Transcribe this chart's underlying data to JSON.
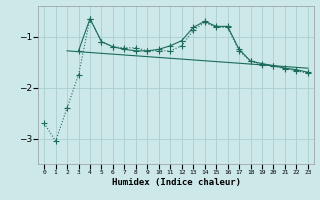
{
  "background_color": "#cce8e8",
  "grid_color": "#aacfcf",
  "line_color": "#1a6b5a",
  "xlabel": "Humidex (Indice chaleur)",
  "xlim": [
    -0.5,
    23.5
  ],
  "ylim": [
    -3.5,
    -0.4
  ],
  "yticks": [
    -3,
    -2,
    -1
  ],
  "xticks": [
    0,
    1,
    2,
    3,
    4,
    5,
    6,
    7,
    8,
    9,
    10,
    11,
    12,
    13,
    14,
    15,
    16,
    17,
    18,
    19,
    20,
    21,
    22,
    23
  ],
  "line1_x": [
    0,
    1,
    2,
    3,
    4,
    5,
    6,
    7,
    8,
    9,
    10,
    11,
    12,
    13,
    14,
    15,
    16,
    17,
    18,
    19,
    20,
    21,
    22,
    23
  ],
  "line1_y": [
    -2.7,
    -3.05,
    -2.4,
    -1.75,
    -0.65,
    -1.1,
    -1.2,
    -1.22,
    -1.22,
    -1.28,
    -1.28,
    -1.28,
    -1.18,
    -0.88,
    -0.72,
    -0.82,
    -0.82,
    -1.28,
    -1.48,
    -1.55,
    -1.58,
    -1.63,
    -1.67,
    -1.72
  ],
  "line1_style": ":",
  "line1_marker": "+",
  "line1_markersize": 4,
  "line2_x": [
    2,
    23
  ],
  "line2_y": [
    -1.28,
    -1.62
  ],
  "line2_style": "-",
  "line3_x": [
    3,
    4,
    5,
    6,
    7,
    8,
    9,
    10,
    11,
    12,
    13,
    14,
    15,
    16,
    17,
    18,
    19,
    20,
    21,
    22,
    23
  ],
  "line3_y": [
    -1.28,
    -0.65,
    -1.1,
    -1.2,
    -1.25,
    -1.28,
    -1.28,
    -1.25,
    -1.18,
    -1.08,
    -0.82,
    -0.7,
    -0.8,
    -0.8,
    -1.25,
    -1.48,
    -1.53,
    -1.57,
    -1.62,
    -1.65,
    -1.7
  ],
  "line3_style": "-",
  "line3_marker": "+",
  "line3_markersize": 4
}
